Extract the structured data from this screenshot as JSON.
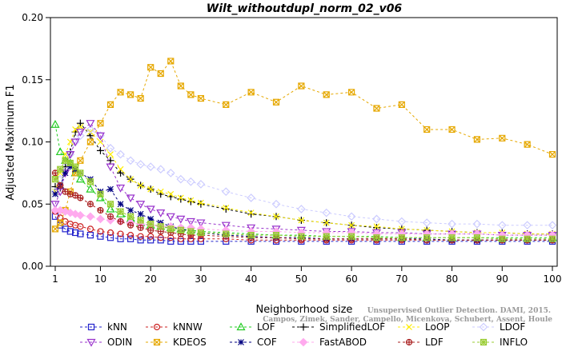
{
  "chart_data": {
    "type": "line",
    "title": "Wilt_withoutdupl_norm_02_v06",
    "xlabel": "Neighborhood size",
    "ylabel": "Adjusted Maximum F1",
    "xlim": [
      1,
      100
    ],
    "ylim": [
      0,
      0.2
    ],
    "x_ticks": [
      1,
      10,
      20,
      30,
      40,
      50,
      60,
      70,
      80,
      90,
      100
    ],
    "y_ticks": [
      0.0,
      0.05,
      0.1,
      0.15,
      0.2
    ],
    "y_tick_labels": [
      "0.00",
      "0.05",
      "0.10",
      "0.15",
      "0.20"
    ],
    "x_tick_labels": [
      "1",
      "10",
      "20",
      "30",
      "40",
      "50",
      "60",
      "70",
      "80",
      "90",
      "100"
    ],
    "grid": false,
    "legend_placement": "bottom",
    "x": [
      1,
      2,
      3,
      4,
      5,
      6,
      8,
      10,
      12,
      14,
      16,
      18,
      20,
      22,
      24,
      26,
      28,
      30,
      35,
      40,
      45,
      50,
      55,
      60,
      65,
      70,
      75,
      80,
      85,
      90,
      95,
      100
    ],
    "series": [
      {
        "name": "kNN",
        "color": "#2222cc",
        "marker": "square",
        "values": [
          0.04,
          0.033,
          0.03,
          0.028,
          0.027,
          0.026,
          0.025,
          0.024,
          0.023,
          0.022,
          0.022,
          0.021,
          0.021,
          0.021,
          0.02,
          0.02,
          0.02,
          0.02,
          0.02,
          0.02,
          0.02,
          0.02,
          0.02,
          0.02,
          0.02,
          0.02,
          0.02,
          0.02,
          0.02,
          0.02,
          0.02,
          0.02
        ]
      },
      {
        "name": "kNNW",
        "color": "#cc2222",
        "marker": "circle",
        "values": [
          0.044,
          0.039,
          0.036,
          0.034,
          0.033,
          0.032,
          0.03,
          0.028,
          0.027,
          0.026,
          0.025,
          0.024,
          0.024,
          0.023,
          0.023,
          0.022,
          0.022,
          0.022,
          0.022,
          0.021,
          0.021,
          0.021,
          0.021,
          0.021,
          0.021,
          0.021,
          0.021,
          0.021,
          0.021,
          0.021,
          0.021,
          0.021
        ]
      },
      {
        "name": "LOF",
        "color": "#22cc22",
        "marker": "triangle-up",
        "values": [
          0.114,
          0.092,
          0.085,
          0.083,
          0.075,
          0.07,
          0.062,
          0.055,
          0.046,
          0.042,
          0.038,
          0.035,
          0.033,
          0.032,
          0.031,
          0.03,
          0.029,
          0.028,
          0.027,
          0.026,
          0.025,
          0.025,
          0.024,
          0.024,
          0.024,
          0.023,
          0.023,
          0.023,
          0.023,
          0.023,
          0.023,
          0.023
        ]
      },
      {
        "name": "SimplifiedLOF",
        "color": "#000000",
        "marker": "plus",
        "values": [
          0.064,
          0.063,
          0.08,
          0.092,
          0.108,
          0.115,
          0.105,
          0.093,
          0.085,
          0.075,
          0.07,
          0.065,
          0.062,
          0.058,
          0.056,
          0.054,
          0.052,
          0.05,
          0.046,
          0.042,
          0.04,
          0.037,
          0.035,
          0.033,
          0.031,
          0.03,
          0.029,
          0.028,
          0.027,
          0.027,
          0.026,
          0.026
        ]
      },
      {
        "name": "LoOP",
        "color": "#ffee00",
        "marker": "x",
        "values": [
          0.06,
          0.075,
          0.09,
          0.1,
          0.11,
          0.112,
          0.108,
          0.1,
          0.09,
          0.078,
          0.07,
          0.065,
          0.062,
          0.06,
          0.058,
          0.055,
          0.053,
          0.051,
          0.047,
          0.043,
          0.04,
          0.037,
          0.035,
          0.033,
          0.032,
          0.03,
          0.029,
          0.028,
          0.027,
          0.027,
          0.026,
          0.026
        ]
      },
      {
        "name": "LDOF",
        "color": "#ccccff",
        "marker": "diamond",
        "values": [
          0.06,
          0.07,
          0.08,
          0.09,
          0.1,
          0.105,
          0.11,
          0.105,
          0.095,
          0.09,
          0.085,
          0.082,
          0.08,
          0.078,
          0.075,
          0.07,
          0.068,
          0.066,
          0.06,
          0.055,
          0.05,
          0.046,
          0.043,
          0.04,
          0.038,
          0.036,
          0.035,
          0.034,
          0.034,
          0.033,
          0.033,
          0.033
        ]
      },
      {
        "name": "ODIN",
        "color": "#9933cc",
        "marker": "triangle-down",
        "values": [
          0.05,
          0.06,
          0.075,
          0.09,
          0.1,
          0.108,
          0.115,
          0.105,
          0.08,
          0.063,
          0.055,
          0.05,
          0.046,
          0.043,
          0.04,
          0.038,
          0.036,
          0.035,
          0.033,
          0.031,
          0.03,
          0.029,
          0.028,
          0.028,
          0.027,
          0.027,
          0.026,
          0.026,
          0.026,
          0.025,
          0.025,
          0.025
        ]
      },
      {
        "name": "KDEOS",
        "color": "#e6a800",
        "marker": "square-x",
        "values": [
          0.03,
          0.035,
          0.045,
          0.06,
          0.075,
          0.085,
          0.1,
          0.115,
          0.13,
          0.14,
          0.138,
          0.135,
          0.16,
          0.155,
          0.165,
          0.145,
          0.138,
          0.135,
          0.13,
          0.14,
          0.132,
          0.145,
          0.138,
          0.14,
          0.127,
          0.13,
          0.11,
          0.11,
          0.102,
          0.103,
          0.098,
          0.09
        ]
      },
      {
        "name": "COF",
        "color": "#000080",
        "marker": "asterisk",
        "values": [
          0.058,
          0.065,
          0.075,
          0.08,
          0.078,
          0.075,
          0.07,
          0.06,
          0.062,
          0.05,
          0.045,
          0.042,
          0.038,
          0.035,
          0.032,
          0.03,
          0.028,
          0.027,
          0.025,
          0.024,
          0.023,
          0.023,
          0.022,
          0.022,
          0.022,
          0.022,
          0.022,
          0.021,
          0.021,
          0.021,
          0.021,
          0.021
        ]
      },
      {
        "name": "FastABOD",
        "color": "#ffaaee",
        "marker": "diamond-filled",
        "values": [
          0.045,
          0.045,
          0.044,
          0.043,
          0.042,
          0.041,
          0.04,
          0.038,
          0.037,
          0.036,
          0.035,
          0.034,
          0.033,
          0.032,
          0.032,
          0.031,
          0.031,
          0.03,
          0.029,
          0.028,
          0.028,
          0.027,
          0.027,
          0.027,
          0.026,
          0.026,
          0.026,
          0.026,
          0.026,
          0.025,
          0.025,
          0.025
        ]
      },
      {
        "name": "LDF",
        "color": "#aa2222",
        "marker": "circle-plus",
        "values": [
          0.075,
          0.065,
          0.06,
          0.058,
          0.057,
          0.055,
          0.05,
          0.045,
          0.04,
          0.036,
          0.033,
          0.031,
          0.029,
          0.028,
          0.027,
          0.026,
          0.025,
          0.025,
          0.024,
          0.023,
          0.023,
          0.022,
          0.022,
          0.022,
          0.022,
          0.022,
          0.021,
          0.021,
          0.021,
          0.021,
          0.021,
          0.021
        ]
      },
      {
        "name": "INFLO",
        "color": "#99cc33",
        "marker": "square-star",
        "values": [
          0.07,
          0.078,
          0.085,
          0.083,
          0.08,
          0.075,
          0.068,
          0.058,
          0.05,
          0.044,
          0.04,
          0.037,
          0.034,
          0.032,
          0.03,
          0.029,
          0.028,
          0.027,
          0.026,
          0.025,
          0.025,
          0.024,
          0.024,
          0.024,
          0.023,
          0.023,
          0.023,
          0.023,
          0.023,
          0.022,
          0.022,
          0.022
        ]
      }
    ]
  },
  "watermark": {
    "line1": "Unsupervised Outlier Detection. DAMI, 2015.",
    "line2": "Campos, Zimek, Sander, Campello, Micenkova, Schubert, Assent, Houle"
  }
}
